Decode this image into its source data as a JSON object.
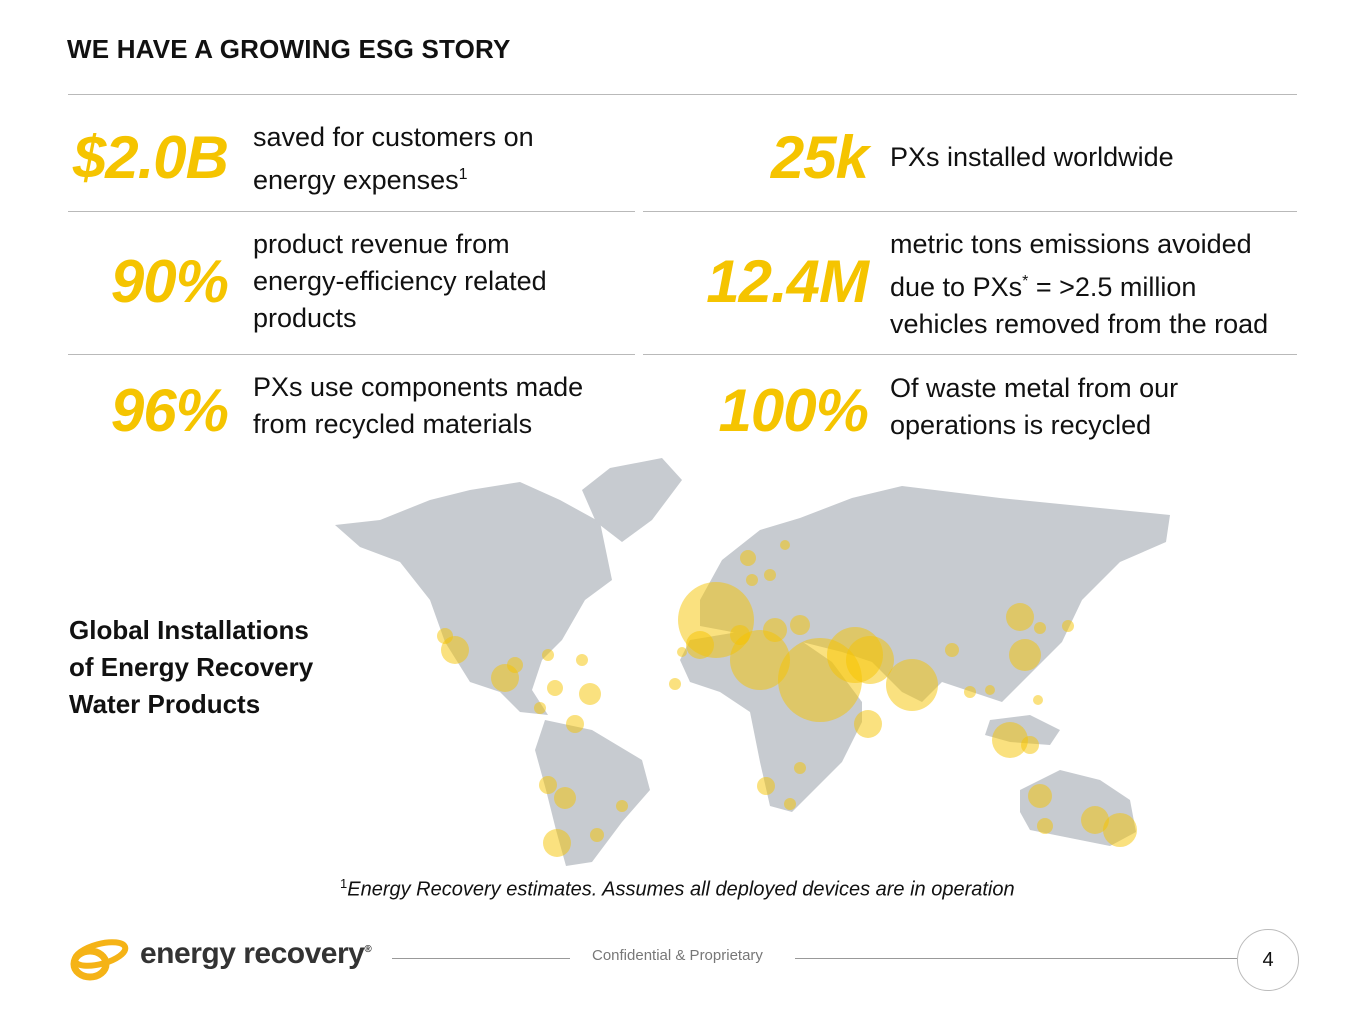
{
  "title": "WE HAVE A GROWING ESG STORY",
  "stats": [
    {
      "value": "$2.0B",
      "lines": [
        "saved for customers on",
        "energy expenses"
      ],
      "sup": "1"
    },
    {
      "value": "25k",
      "lines": [
        "PXs installed worldwide"
      ]
    },
    {
      "value": "90%",
      "lines": [
        "product revenue from",
        "energy-efficiency related",
        "products"
      ]
    },
    {
      "value": "12.4M",
      "lines": [
        "metric tons emissions avoided",
        "due to PXs",
        "vehicles removed from the road"
      ],
      "sup2": "*",
      "line2_rest": " = >2.5 million"
    },
    {
      "value": "96%",
      "lines": [
        "PXs use components made",
        "from recycled materials"
      ]
    },
    {
      "value": "100%",
      "lines": [
        "Of waste metal from our",
        "operations is recycled"
      ]
    }
  ],
  "map_caption": [
    "Global Installations",
    "of Energy Recovery",
    "Water Products"
  ],
  "footnote": {
    "sup": "1",
    "text": "Energy Recovery estimates. Assumes all deployed devices are in operation"
  },
  "footer": {
    "logo_text": "energy recovery",
    "logo_mark": "®",
    "confidential": "Confidential & Proprietary",
    "page": "4"
  },
  "colors": {
    "accent": "#F5C400",
    "map_land": "#C7CBD0",
    "bubble": "#F5C400"
  }
}
